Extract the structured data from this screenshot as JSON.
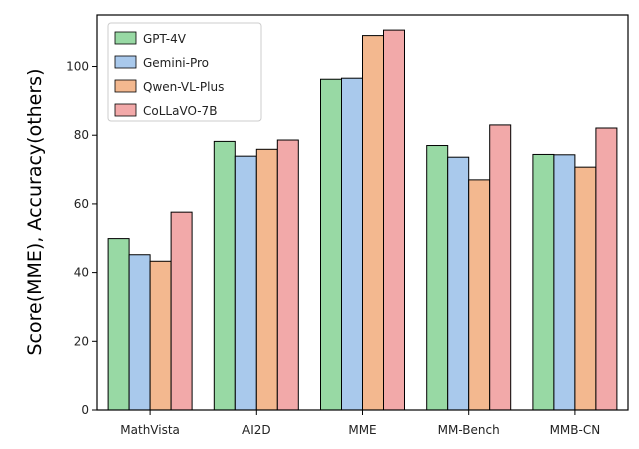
{
  "chart_data": {
    "type": "bar",
    "title": "",
    "xlabel": "",
    "ylabel": "Score(MME),  Accuracy(others)",
    "categories": [
      "MathVista",
      "AI2D",
      "MME",
      "MM-Bench",
      "MMB-CN"
    ],
    "ylim": [
      0,
      115
    ],
    "yticks": [
      0,
      20,
      40,
      60,
      80,
      100
    ],
    "grid": false,
    "legend_position": "top-left",
    "series": [
      {
        "name": "GPT-4V",
        "color": "#98d9a4",
        "values": [
          49.9,
          78.2,
          96.3,
          77.0,
          74.4
        ]
      },
      {
        "name": "Gemini-Pro",
        "color": "#a9c9ec",
        "values": [
          45.2,
          73.9,
          96.6,
          73.6,
          74.3
        ]
      },
      {
        "name": "Qwen-VL-Plus",
        "color": "#f3b88f",
        "values": [
          43.3,
          75.9,
          109.0,
          67.0,
          70.7
        ]
      },
      {
        "name": "CoLLaVO-7B",
        "color": "#f2a9a9",
        "values": [
          57.6,
          78.6,
          110.6,
          83.0,
          82.1
        ]
      }
    ]
  }
}
